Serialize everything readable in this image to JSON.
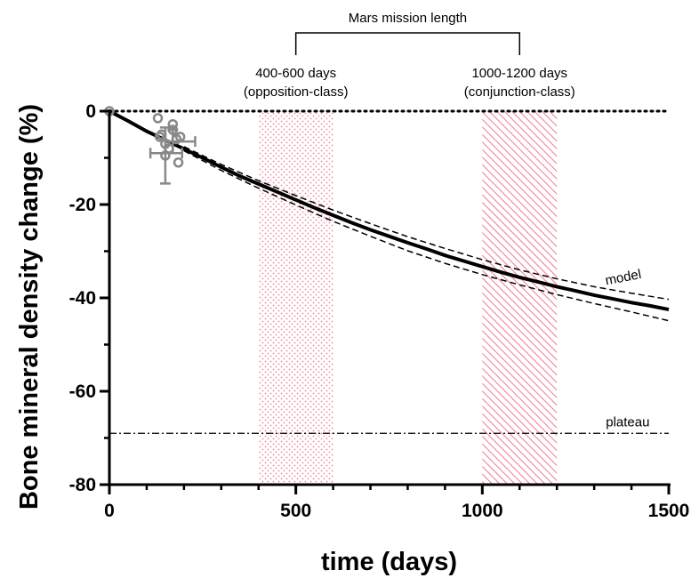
{
  "chart_data": {
    "type": "line",
    "xlabel": "time (days)",
    "ylabel": "Bone mineral density change (%)",
    "xlim": [
      0,
      1500
    ],
    "ylim": [
      -80,
      0
    ],
    "x_ticks": [
      0,
      500,
      1000,
      1500
    ],
    "x_tick_labels": [
      "0",
      "500",
      "1000",
      "1500"
    ],
    "y_ticks": [
      0,
      -20,
      -40,
      -60,
      -80
    ],
    "y_tick_labels": [
      "0",
      "-20",
      "-40",
      "-60",
      "-80"
    ],
    "grid": false,
    "series": [
      {
        "name": "model",
        "style": "solid",
        "x": [
          0,
          50,
          100,
          150,
          200,
          250,
          300,
          350,
          400,
          450,
          500,
          550,
          600,
          650,
          700,
          750,
          800,
          850,
          900,
          950,
          1000,
          1050,
          1100,
          1150,
          1200,
          1250,
          1300,
          1350,
          1400,
          1450,
          1500
        ],
        "y": [
          0,
          -2.1,
          -4.3,
          -6.2,
          -8.1,
          -10.0,
          -12.0,
          -13.9,
          -15.6,
          -17.3,
          -19.0,
          -20.7,
          -22.3,
          -23.9,
          -25.4,
          -26.8,
          -28.2,
          -29.5,
          -30.9,
          -32.1,
          -33.3,
          -34.5,
          -35.6,
          -36.6,
          -37.6,
          -38.5,
          -39.4,
          -40.2,
          -41.0,
          -41.7,
          -42.5
        ]
      },
      {
        "style": "dashed",
        "x": [
          200,
          300,
          400,
          500,
          600,
          700,
          800,
          900,
          1000,
          1100,
          1200,
          1300,
          1400,
          1500
        ],
        "y": [
          -7.6,
          -11.4,
          -14.9,
          -18.1,
          -21.2,
          -24.1,
          -26.9,
          -29.4,
          -31.8,
          -34.0,
          -35.9,
          -37.6,
          -39.0,
          -40.3
        ]
      },
      {
        "style": "dashed",
        "x": [
          200,
          300,
          400,
          500,
          600,
          700,
          800,
          900,
          1000,
          1100,
          1200,
          1300,
          1400,
          1500
        ],
        "y": [
          -8.5,
          -12.7,
          -16.5,
          -20.1,
          -23.6,
          -26.8,
          -29.9,
          -32.6,
          -35.0,
          -37.2,
          -39.3,
          -41.2,
          -43.0,
          -44.9
        ]
      }
    ],
    "data_points": [
      {
        "x": 0,
        "y": 0
      },
      {
        "x": 130,
        "y": -1.5
      },
      {
        "x": 140,
        "y": -5.0
      },
      {
        "x": 150,
        "y": -7.0
      },
      {
        "x": 160,
        "y": -8.0
      },
      {
        "x": 170,
        "y": -4.0
      },
      {
        "x": 170,
        "y": -2.8
      },
      {
        "x": 180,
        "y": -6.0
      },
      {
        "x": 185,
        "y": -11.0
      },
      {
        "x": 150,
        "y": -9.5
      },
      {
        "x": 190,
        "y": -5.5
      },
      {
        "x": 135,
        "y": -5.5
      }
    ],
    "error_bars": [
      {
        "x": 150,
        "y": -9.0,
        "ylow": -15.5,
        "yhigh": -3.5,
        "xlow": 110,
        "xhigh": 195
      },
      {
        "x": 170,
        "y": -6.5,
        "ylow": -9.0,
        "yhigh": -4.0,
        "xlow": 150,
        "xhigh": 230
      }
    ],
    "plateau": {
      "label": "plateau",
      "y": -69
    },
    "zero_line": {
      "y": 0,
      "style": "dotted"
    },
    "model_label": "model",
    "bands": [
      {
        "x_start": 400,
        "x_end": 600,
        "pattern": "dots",
        "color": "#f3889a",
        "label_line1": "400-600 days",
        "label_line2": "(opposition-class)"
      },
      {
        "x_start": 1000,
        "x_end": 1200,
        "pattern": "hatch",
        "color": "#f07a8e",
        "label_line1": "1000-1200 days",
        "label_line2": "(conjunction-class)"
      }
    ],
    "bracket": {
      "label": "Mars mission length",
      "x_start": 500,
      "x_end": 1100
    }
  }
}
